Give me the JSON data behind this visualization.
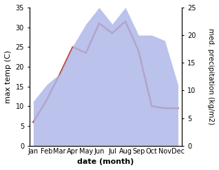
{
  "months": [
    "Jan",
    "Feb",
    "Mar",
    "Apr",
    "May",
    "Jun",
    "Jul",
    "Aug",
    "Sep",
    "Oct",
    "Nov",
    "Dec"
  ],
  "temperature": [
    6,
    11.5,
    18,
    25,
    23.5,
    31,
    28.5,
    31.5,
    24,
    10,
    9.5,
    9.5
  ],
  "precipitation": [
    8,
    11,
    13,
    18,
    22,
    25,
    22,
    25,
    20,
    20,
    19,
    11
  ],
  "temp_color": "#c0392b",
  "precip_color": "#b0b8e8",
  "temp_ylim": [
    0,
    35
  ],
  "precip_ylim": [
    0,
    25
  ],
  "temp_yticks": [
    0,
    5,
    10,
    15,
    20,
    25,
    30,
    35
  ],
  "precip_yticks": [
    0,
    5,
    10,
    15,
    20,
    25
  ],
  "xlabel": "date (month)",
  "ylabel_left": "max temp (C)",
  "ylabel_right": "med. precipitation (kg/m2)",
  "label_fontsize": 8,
  "tick_fontsize": 7
}
